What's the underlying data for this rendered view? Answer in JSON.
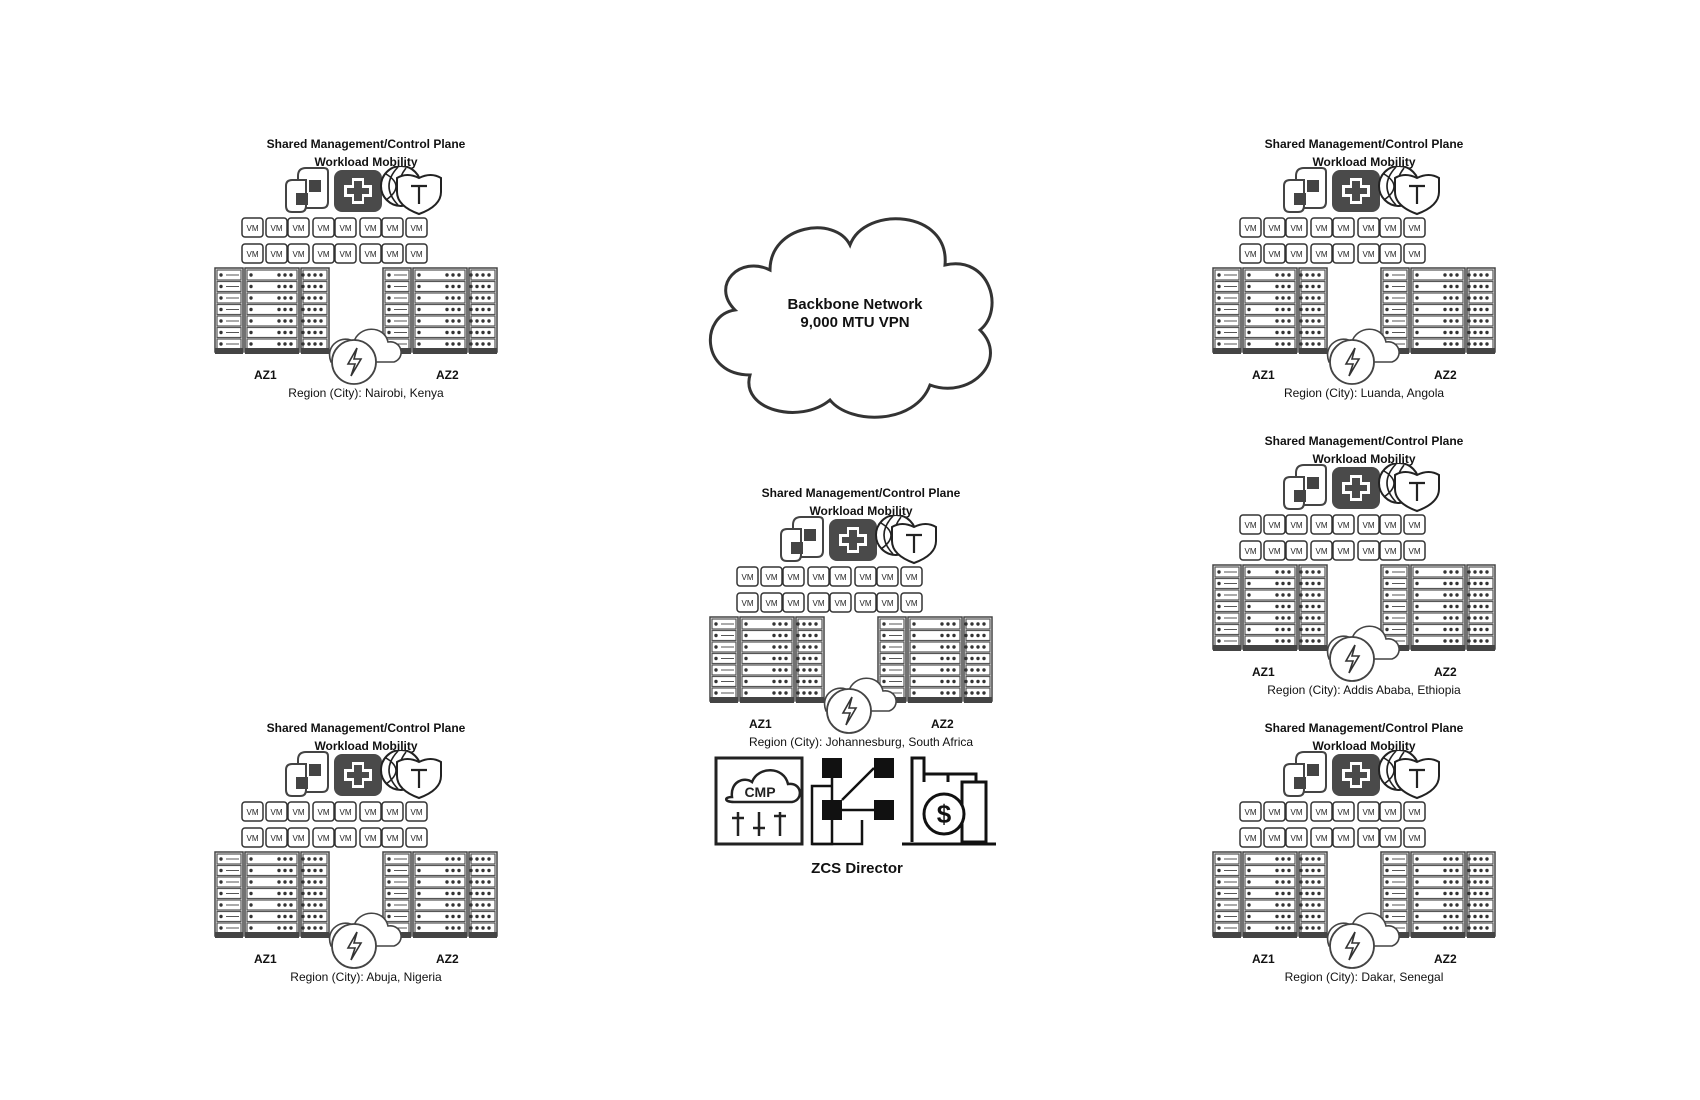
{
  "backbone": {
    "line1": "Backbone Network",
    "line2": "9,000 MTU VPN"
  },
  "zcs": {
    "label": "ZCS Director",
    "cmp_text": "CMP"
  },
  "site_common": {
    "header1": "Shared Management/Control Plane",
    "header2": "Workload Mobility",
    "az1": "AZ1",
    "az2": "AZ2",
    "vm": "VM"
  },
  "sites": [
    {
      "region": "Region (City): Nairobi, Kenya"
    },
    {
      "region": "Region (City): Luanda, Angola"
    },
    {
      "region": "Region (City): Addis Ababa, Ethiopia"
    },
    {
      "region": "Region (City): Johannesburg, South Africa"
    },
    {
      "region": "Region (City): Abuja, Nigeria"
    },
    {
      "region": "Region (City): Dakar, Senegal"
    }
  ],
  "colors": {
    "stroke": "#3a3a3a",
    "fill_dark": "#4a4a4a",
    "background": "#ffffff"
  },
  "icons": [
    "vmware-logo-icon",
    "medical-cross-icon",
    "tanzu-globe-icon",
    "shield-t-icon",
    "server-rack-icon",
    "cloud-lightning-icon",
    "cmp-cloud-icon",
    "network-topology-icon",
    "cost-building-icon"
  ]
}
